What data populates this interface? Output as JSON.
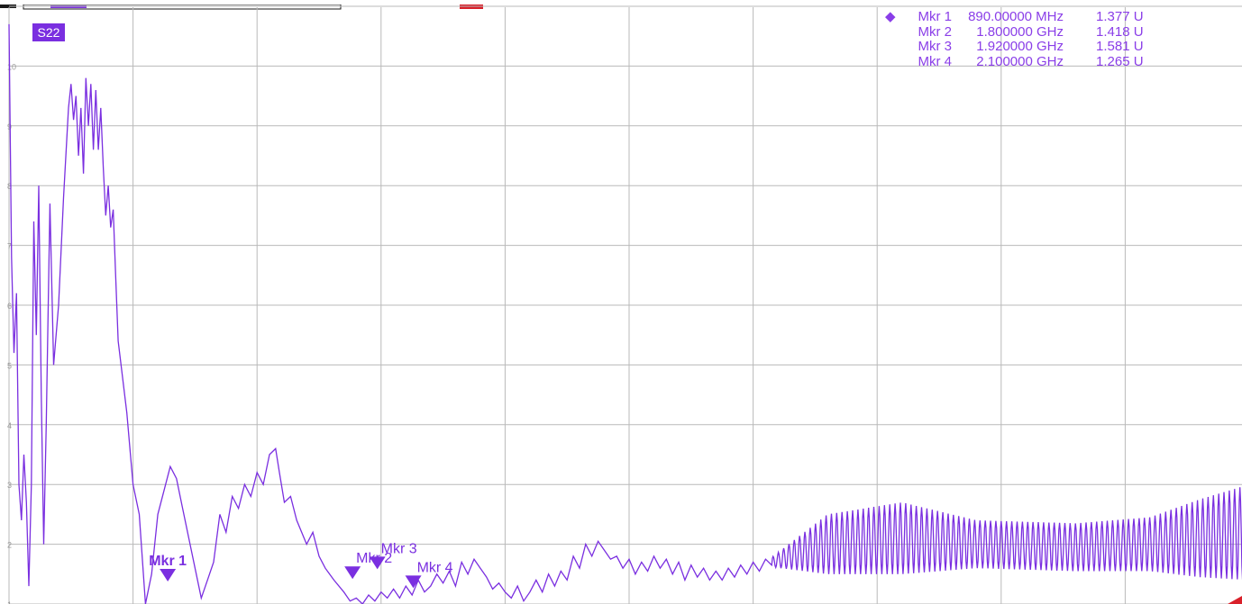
{
  "trace": {
    "label": "S22",
    "color": "#7a2fe0"
  },
  "colors": {
    "grid": "#b9b9b9",
    "marker_table_text": "#8a3ee8",
    "accent_red": "#d9202a"
  },
  "marker_table": {
    "active_symbol": "◆",
    "rows": [
      {
        "name": "Mkr 1",
        "freq": "890.00000 MHz",
        "value": "1.377 U",
        "active": true
      },
      {
        "name": "Mkr 2",
        "freq": "1.800000 GHz",
        "value": "1.418 U",
        "active": false
      },
      {
        "name": "Mkr 3",
        "freq": "1.920000 GHz",
        "value": "1.581 U",
        "active": false
      },
      {
        "name": "Mkr 4",
        "freq": "2.100000 GHz",
        "value": "1.265 U",
        "active": false
      }
    ]
  },
  "chart_data": {
    "type": "line",
    "title": "",
    "xlabel": "",
    "ylabel": "",
    "ylim": [
      1,
      11
    ],
    "yticks": [
      "1",
      "2",
      "3",
      "4",
      "5",
      "6",
      "7",
      "8",
      "9",
      "10"
    ],
    "x_divisions": 10,
    "grid": true,
    "series": [
      {
        "points": [
          [
            0.0,
            10.7
          ],
          [
            0.002,
            6.8
          ],
          [
            0.004,
            5.2
          ],
          [
            0.006,
            6.2
          ],
          [
            0.008,
            3.0
          ],
          [
            0.01,
            2.4
          ],
          [
            0.012,
            3.5
          ],
          [
            0.014,
            2.7
          ],
          [
            0.016,
            1.3
          ],
          [
            0.018,
            3.0
          ],
          [
            0.02,
            7.4
          ],
          [
            0.022,
            5.5
          ],
          [
            0.024,
            8.0
          ],
          [
            0.026,
            4.5
          ],
          [
            0.028,
            2.0
          ],
          [
            0.03,
            4.0
          ],
          [
            0.033,
            7.7
          ],
          [
            0.036,
            5.0
          ],
          [
            0.04,
            6.0
          ],
          [
            0.044,
            7.8
          ],
          [
            0.048,
            9.3
          ],
          [
            0.05,
            9.7
          ],
          [
            0.052,
            9.1
          ],
          [
            0.054,
            9.5
          ],
          [
            0.056,
            8.5
          ],
          [
            0.058,
            9.3
          ],
          [
            0.06,
            8.2
          ],
          [
            0.062,
            9.8
          ],
          [
            0.064,
            9.0
          ],
          [
            0.066,
            9.7
          ],
          [
            0.068,
            8.6
          ],
          [
            0.07,
            9.6
          ],
          [
            0.072,
            8.6
          ],
          [
            0.074,
            9.3
          ],
          [
            0.076,
            8.3
          ],
          [
            0.078,
            7.5
          ],
          [
            0.08,
            8.0
          ],
          [
            0.082,
            7.3
          ],
          [
            0.084,
            7.6
          ],
          [
            0.086,
            6.5
          ],
          [
            0.088,
            5.4
          ],
          [
            0.095,
            4.2
          ],
          [
            0.1,
            3.0
          ],
          [
            0.105,
            2.5
          ],
          [
            0.11,
            1.0
          ],
          [
            0.115,
            1.5
          ],
          [
            0.12,
            2.5
          ],
          [
            0.13,
            3.3
          ],
          [
            0.135,
            3.1
          ],
          [
            0.14,
            2.6
          ],
          [
            0.145,
            2.1
          ],
          [
            0.15,
            1.6
          ],
          [
            0.155,
            1.1
          ],
          [
            0.16,
            1.4
          ],
          [
            0.165,
            1.7
          ],
          [
            0.17,
            2.5
          ],
          [
            0.175,
            2.2
          ],
          [
            0.18,
            2.8
          ],
          [
            0.185,
            2.6
          ],
          [
            0.19,
            3.0
          ],
          [
            0.195,
            2.8
          ],
          [
            0.2,
            3.2
          ],
          [
            0.205,
            3.0
          ],
          [
            0.21,
            3.5
          ],
          [
            0.215,
            3.6
          ],
          [
            0.218,
            3.2
          ],
          [
            0.222,
            2.7
          ],
          [
            0.227,
            2.8
          ],
          [
            0.232,
            2.4
          ],
          [
            0.24,
            2.0
          ],
          [
            0.245,
            2.2
          ],
          [
            0.25,
            1.8
          ],
          [
            0.255,
            1.6
          ],
          [
            0.262,
            1.4
          ],
          [
            0.27,
            1.2
          ],
          [
            0.275,
            1.05
          ],
          [
            0.28,
            1.1
          ],
          [
            0.285,
            1.0
          ],
          [
            0.29,
            1.15
          ],
          [
            0.295,
            1.05
          ],
          [
            0.3,
            1.2
          ],
          [
            0.305,
            1.1
          ],
          [
            0.31,
            1.25
          ],
          [
            0.315,
            1.1
          ],
          [
            0.32,
            1.3
          ],
          [
            0.325,
            1.15
          ],
          [
            0.33,
            1.4
          ],
          [
            0.335,
            1.2
          ],
          [
            0.34,
            1.3
          ],
          [
            0.345,
            1.5
          ],
          [
            0.35,
            1.35
          ],
          [
            0.355,
            1.55
          ],
          [
            0.36,
            1.3
          ],
          [
            0.365,
            1.7
          ],
          [
            0.37,
            1.5
          ],
          [
            0.375,
            1.75
          ],
          [
            0.38,
            1.6
          ],
          [
            0.385,
            1.45
          ],
          [
            0.39,
            1.25
          ],
          [
            0.395,
            1.35
          ],
          [
            0.4,
            1.2
          ],
          [
            0.405,
            1.1
          ],
          [
            0.41,
            1.3
          ],
          [
            0.415,
            1.05
          ],
          [
            0.42,
            1.2
          ],
          [
            0.425,
            1.4
          ],
          [
            0.43,
            1.2
          ],
          [
            0.435,
            1.5
          ],
          [
            0.44,
            1.3
          ],
          [
            0.445,
            1.55
          ],
          [
            0.45,
            1.4
          ],
          [
            0.455,
            1.8
          ],
          [
            0.46,
            1.6
          ],
          [
            0.465,
            2.0
          ],
          [
            0.47,
            1.8
          ],
          [
            0.475,
            2.05
          ],
          [
            0.48,
            1.9
          ],
          [
            0.485,
            1.75
          ],
          [
            0.49,
            1.8
          ],
          [
            0.495,
            1.6
          ],
          [
            0.5,
            1.75
          ],
          [
            0.505,
            1.5
          ],
          [
            0.51,
            1.7
          ],
          [
            0.515,
            1.55
          ],
          [
            0.52,
            1.8
          ],
          [
            0.525,
            1.6
          ],
          [
            0.53,
            1.75
          ],
          [
            0.535,
            1.5
          ],
          [
            0.54,
            1.7
          ],
          [
            0.545,
            1.4
          ],
          [
            0.55,
            1.65
          ],
          [
            0.555,
            1.45
          ],
          [
            0.56,
            1.6
          ],
          [
            0.565,
            1.4
          ],
          [
            0.57,
            1.55
          ],
          [
            0.575,
            1.4
          ],
          [
            0.58,
            1.6
          ],
          [
            0.585,
            1.45
          ],
          [
            0.59,
            1.65
          ],
          [
            0.595,
            1.5
          ],
          [
            0.6,
            1.7
          ],
          [
            0.605,
            1.55
          ],
          [
            0.61,
            1.75
          ],
          [
            0.615,
            1.65
          ]
        ],
        "wave_segment": {
          "x_start": 0.615,
          "x_end": 1.0,
          "cycles": 90,
          "center": [
            [
              0.615,
              1.7
            ],
            [
              0.66,
              2.0
            ],
            [
              0.72,
              2.1
            ],
            [
              0.78,
              2.0
            ],
            [
              0.86,
              1.95
            ],
            [
              0.92,
              2.0
            ],
            [
              0.96,
              2.1
            ],
            [
              1.0,
              2.2
            ]
          ],
          "amplitude": [
            [
              0.615,
              0.08
            ],
            [
              0.66,
              0.5
            ],
            [
              0.72,
              0.6
            ],
            [
              0.78,
              0.4
            ],
            [
              0.86,
              0.4
            ],
            [
              0.92,
              0.45
            ],
            [
              0.96,
              0.65
            ],
            [
              1.0,
              0.8
            ]
          ]
        }
      }
    ],
    "markers": [
      {
        "label": "Mkr 1",
        "x": 0.128,
        "y": 1.377,
        "active": true
      },
      {
        "label": "Mkr 2",
        "x": 0.277,
        "y": 1.418,
        "active": false
      },
      {
        "label": "Mkr 3",
        "x": 0.297,
        "y": 1.581,
        "active": false
      },
      {
        "label": "Mkr 4",
        "x": 0.326,
        "y": 1.265,
        "active": false
      }
    ]
  }
}
